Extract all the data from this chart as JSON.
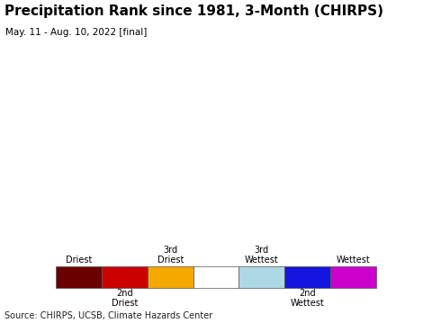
{
  "title": "Precipitation Rank since 1981, 3-Month (CHIRPS)",
  "subtitle": "May. 11 - Aug. 10, 2022 [final]",
  "source_text": "Source: CHIRPS, UCSB, Climate Hazards Center",
  "legend_colors": [
    "#6b0000",
    "#cc0000",
    "#f5a800",
    "#ffffff",
    "#add8e6",
    "#1515e0",
    "#cc00cc"
  ],
  "map_bg_color": "#a8d8ea",
  "us_land_color": "#f0f0f0",
  "non_us_land_color": "#ddd0dd",
  "border_color": "#808080",
  "country_border_color": "#303030",
  "title_fontsize": 11,
  "subtitle_fontsize": 7.5,
  "source_fontsize": 7,
  "legend_fontsize": 7
}
